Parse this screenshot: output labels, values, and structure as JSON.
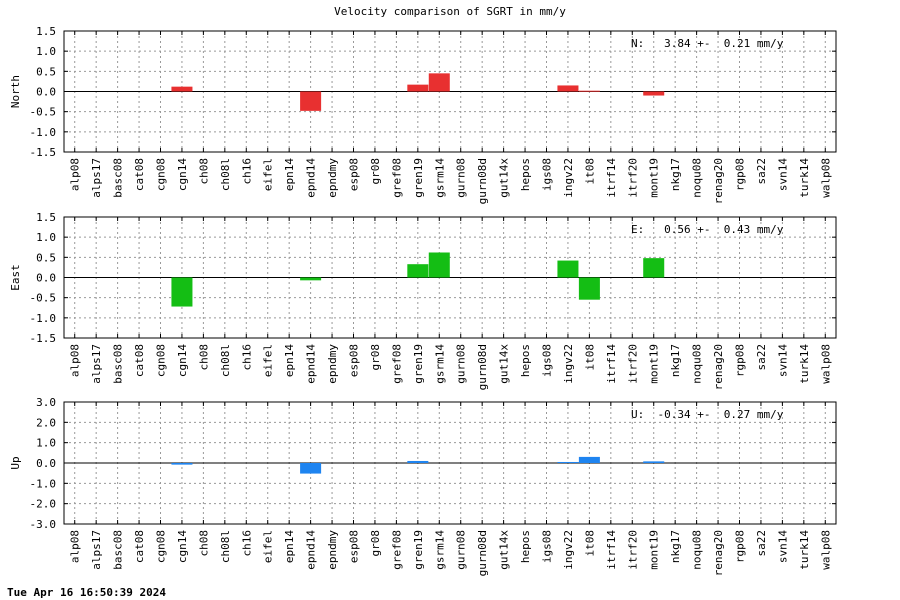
{
  "title": "Velocity comparison of SGRT in mm/y",
  "footer": "Tue Apr 16 16:50:39 2024",
  "chart_data": {
    "type": "bar",
    "categories": [
      "alp08",
      "alps17",
      "basc08",
      "cat08",
      "cgn08",
      "cgn14",
      "ch08",
      "ch08l",
      "ch16",
      "eifel",
      "epn14",
      "epnd14",
      "epndmy",
      "esp08",
      "gr08",
      "gref08",
      "gren19",
      "gsrm14",
      "gurn08",
      "gurn08d",
      "gut14x",
      "hepos",
      "igs08",
      "ingv22",
      "it08",
      "itrf14",
      "itrf20",
      "mont19",
      "nkg17",
      "noqu08",
      "renag20",
      "rgp08",
      "sa22",
      "svn14",
      "turk14",
      "walp08"
    ],
    "grid": true,
    "panels": [
      {
        "ylabel": "North",
        "annotation": "N:   3.84 +-  0.21 mm/y",
        "color": "#e83030",
        "ylim": [
          -1.5,
          1.5
        ],
        "yticks": [
          "1.5",
          "1.0",
          "0.5",
          "0.0",
          "-0.5",
          "-1.0",
          "-1.5"
        ],
        "values": [
          0,
          0,
          0,
          0,
          0,
          0.12,
          0,
          0,
          0,
          0,
          0,
          -0.48,
          0,
          0,
          0,
          0,
          0.17,
          0.45,
          0,
          0,
          0,
          0,
          0,
          0.15,
          0.02,
          0,
          0,
          -0.1,
          0,
          0,
          0,
          0,
          0,
          0,
          0,
          0
        ]
      },
      {
        "ylabel": "East",
        "annotation": "E:   0.56 +-  0.43 mm/y",
        "color": "#14be14",
        "ylim": [
          -1.5,
          1.5
        ],
        "yticks": [
          "1.5",
          "1.0",
          "0.5",
          "0.0",
          "-0.5",
          "-1.0",
          "-1.5"
        ],
        "values": [
          0,
          0,
          0,
          0,
          0,
          -0.72,
          0,
          0,
          0,
          0,
          0,
          -0.07,
          0,
          0,
          0,
          0,
          0.33,
          0.62,
          0,
          0,
          0,
          0,
          0,
          0.42,
          -0.55,
          0,
          0,
          0.48,
          0,
          0,
          0,
          0,
          0,
          0,
          0,
          0
        ]
      },
      {
        "ylabel": "Up",
        "annotation": "U:  -0.34 +-  0.27 mm/y",
        "color": "#1e84f0",
        "ylim": [
          -3.0,
          3.0
        ],
        "yticks": [
          "3.0",
          "2.0",
          "1.0",
          "0.0",
          "-1.0",
          "-2.0",
          "-3.0"
        ],
        "values": [
          0,
          0,
          0,
          0,
          0,
          -0.08,
          0,
          0,
          0,
          0,
          0,
          -0.52,
          0,
          0,
          0,
          0,
          0.1,
          0,
          0,
          0,
          0,
          0,
          0,
          0.05,
          0.3,
          0,
          0,
          0.08,
          0,
          0,
          0,
          0,
          0,
          0,
          0,
          0
        ]
      }
    ]
  }
}
